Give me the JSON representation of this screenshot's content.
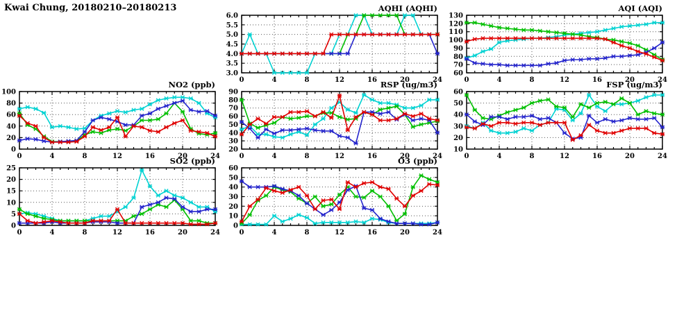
{
  "page_title": "Kwai Chung, 20180210–20180213",
  "axis_color": "#000000",
  "grid_color": "#555555",
  "series_colors": {
    "red": "#e00000",
    "green": "#00bf00",
    "blue": "#2424cc",
    "cyan": "#00d2d2"
  },
  "chart_data": [
    {
      "key": "aqhi",
      "type": "line",
      "title": "AQHI (AQHI)",
      "xlim": [
        0,
        24
      ],
      "xticks": [
        0,
        4,
        8,
        12,
        16,
        20,
        24
      ],
      "ylim": [
        3,
        6
      ],
      "yticks": [
        3,
        3.5,
        4,
        4.5,
        5,
        5.5,
        6
      ],
      "ytick_labels": [
        "3.0",
        "3.5",
        "4.0",
        "4.5",
        "5.0",
        "5.5",
        "6.0"
      ],
      "grid": true,
      "legend_position": "none",
      "marker": "star",
      "series": [
        {
          "name": "cyan",
          "color": "#00d2d2",
          "values": [
            4,
            5,
            4,
            4,
            3,
            3,
            3,
            3,
            3,
            4,
            4,
            4,
            5,
            5,
            6,
            6,
            5,
            5,
            5,
            5,
            6,
            6,
            5,
            5,
            5
          ]
        },
        {
          "name": "green",
          "color": "#00bf00",
          "values": [
            4,
            4,
            4,
            4,
            4,
            4,
            4,
            4,
            4,
            4,
            4,
            4,
            4,
            5,
            5,
            6,
            6,
            6,
            6,
            6,
            5,
            5,
            5,
            5,
            5
          ]
        },
        {
          "name": "blue",
          "color": "#2424cc",
          "values": [
            4,
            4,
            4,
            4,
            4,
            4,
            4,
            4,
            4,
            4,
            4,
            4,
            4,
            4,
            5,
            5,
            5,
            5,
            5,
            5,
            5,
            5,
            5,
            5,
            4
          ]
        },
        {
          "name": "red",
          "color": "#e00000",
          "values": [
            4,
            4,
            4,
            4,
            4,
            4,
            4,
            4,
            4,
            4,
            4,
            5,
            5,
            5,
            5,
            5,
            5,
            5,
            5,
            5,
            5,
            5,
            5,
            5,
            5
          ]
        }
      ]
    },
    {
      "key": "aqi",
      "type": "line",
      "title": "AQI (AQI)",
      "xlim": [
        0,
        24
      ],
      "xticks": [
        0,
        4,
        8,
        12,
        16,
        20,
        24
      ],
      "ylim": [
        60,
        130
      ],
      "yticks": [
        60,
        70,
        80,
        90,
        100,
        110,
        120,
        130
      ],
      "ytick_labels": [
        "60",
        "70",
        "80",
        "90",
        "100",
        "110",
        "120",
        "130"
      ],
      "grid": true,
      "legend_position": "none",
      "marker": "star",
      "series": [
        {
          "name": "cyan",
          "color": "#00d2d2",
          "values": [
            78,
            81,
            86,
            89,
            97,
            99,
            100,
            101,
            102,
            102,
            103,
            104,
            106,
            107,
            108,
            109,
            110,
            112,
            114,
            116,
            117,
            118,
            119,
            121,
            121
          ]
        },
        {
          "name": "green",
          "color": "#00bf00",
          "values": [
            121,
            121,
            119,
            117,
            115,
            114,
            113,
            112,
            112,
            111,
            110,
            109,
            108,
            107,
            106,
            104,
            103,
            101,
            100,
            98,
            96,
            93,
            88,
            82,
            76
          ]
        },
        {
          "name": "blue",
          "color": "#2424cc",
          "values": [
            77,
            72,
            71,
            70,
            70,
            69,
            69,
            69,
            69,
            69,
            71,
            72,
            75,
            76,
            76,
            77,
            77,
            78,
            80,
            80,
            81,
            82,
            85,
            90,
            97
          ]
        },
        {
          "name": "red",
          "color": "#e00000",
          "values": [
            98,
            101,
            102,
            102,
            102,
            102,
            102,
            102,
            102,
            102,
            102,
            102,
            102,
            102,
            102,
            102,
            102,
            101,
            97,
            93,
            90,
            86,
            83,
            79,
            75
          ]
        }
      ]
    },
    {
      "key": "no2",
      "type": "line",
      "title": "NO2 (ppb)",
      "xlim": [
        0,
        24
      ],
      "xticks": [
        0,
        4,
        8,
        12,
        16,
        20,
        24
      ],
      "ylim": [
        0,
        100
      ],
      "yticks": [
        0,
        20,
        40,
        60,
        80,
        100
      ],
      "ytick_labels": [
        "0",
        "20",
        "40",
        "60",
        "80",
        "100"
      ],
      "grid": true,
      "legend_position": "none",
      "marker": "star",
      "series": [
        {
          "name": "cyan",
          "color": "#00d2d2",
          "values": [
            70,
            73,
            70,
            63,
            38,
            40,
            38,
            35,
            36,
            50,
            58,
            62,
            66,
            64,
            68,
            70,
            78,
            85,
            88,
            90,
            90,
            88,
            80,
            62,
            55
          ]
        },
        {
          "name": "green",
          "color": "#00bf00",
          "values": [
            62,
            42,
            35,
            22,
            13,
            13,
            13,
            14,
            25,
            30,
            28,
            33,
            35,
            32,
            40,
            50,
            50,
            52,
            62,
            80,
            65,
            35,
            27,
            25,
            28
          ]
        },
        {
          "name": "blue",
          "color": "#2424cc",
          "values": [
            15,
            18,
            17,
            14,
            12,
            13,
            14,
            15,
            30,
            50,
            55,
            52,
            48,
            42,
            42,
            58,
            62,
            70,
            75,
            80,
            84,
            68,
            65,
            66,
            58
          ]
        },
        {
          "name": "red",
          "color": "#e00000",
          "values": [
            58,
            45,
            40,
            20,
            12,
            12,
            12,
            13,
            22,
            38,
            33,
            38,
            55,
            22,
            40,
            38,
            32,
            30,
            38,
            45,
            50,
            32,
            30,
            28,
            22
          ]
        }
      ]
    },
    {
      "key": "rsp",
      "type": "line",
      "title": "RSP (ug/m3)",
      "xlim": [
        0,
        24
      ],
      "xticks": [
        0,
        4,
        8,
        12,
        16,
        20,
        24
      ],
      "ylim": [
        20,
        90
      ],
      "yticks": [
        20,
        30,
        40,
        50,
        60,
        70,
        80,
        90
      ],
      "ytick_labels": [
        "20",
        "30",
        "40",
        "50",
        "60",
        "70",
        "80",
        "90"
      ],
      "grid": true,
      "legend_position": "none",
      "marker": "star",
      "series": [
        {
          "name": "cyan",
          "color": "#00d2d2",
          "values": [
            44,
            48,
            38,
            38,
            35,
            34,
            38,
            41,
            37,
            50,
            57,
            70,
            77,
            68,
            64,
            86,
            80,
            76,
            76,
            74,
            70,
            70,
            73,
            80,
            80
          ]
        },
        {
          "name": "green",
          "color": "#00bf00",
          "values": [
            80,
            51,
            46,
            49,
            52,
            59,
            57,
            58,
            60,
            60,
            64,
            64,
            59,
            56,
            57,
            65,
            62,
            68,
            70,
            72,
            62,
            47,
            50,
            52,
            54
          ]
        },
        {
          "name": "blue",
          "color": "#2424cc",
          "values": [
            53,
            45,
            34,
            44,
            39,
            43,
            43,
            44,
            45,
            43,
            42,
            42,
            36,
            34,
            27,
            65,
            65,
            63,
            65,
            56,
            62,
            55,
            57,
            55,
            40
          ]
        },
        {
          "name": "red",
          "color": "#e00000",
          "values": [
            38,
            50,
            57,
            51,
            59,
            59,
            65,
            65,
            66,
            60,
            65,
            58,
            85,
            43,
            59,
            65,
            62,
            55,
            55,
            57,
            63,
            60,
            63,
            57,
            55
          ]
        }
      ]
    },
    {
      "key": "fsp",
      "type": "line",
      "title": "FSP (ug/m3)",
      "xlim": [
        0,
        24
      ],
      "xticks": [
        0,
        4,
        8,
        12,
        16,
        20,
        24
      ],
      "ylim": [
        10,
        60
      ],
      "yticks": [
        10,
        20,
        30,
        40,
        50,
        60
      ],
      "ytick_labels": [
        "10",
        "20",
        "30",
        "40",
        "50",
        "60"
      ],
      "grid": true,
      "legend_position": "none",
      "marker": "star",
      "series": [
        {
          "name": "cyan",
          "color": "#00d2d2",
          "values": [
            30,
            28,
            33,
            26,
            24,
            24,
            25,
            28,
            26,
            31,
            33,
            45,
            44,
            35,
            41,
            57,
            47,
            43,
            49,
            49,
            50,
            52,
            55,
            57,
            57
          ]
        },
        {
          "name": "green",
          "color": "#00bf00",
          "values": [
            57,
            44,
            37,
            36,
            39,
            42,
            44,
            46,
            50,
            52,
            53,
            47,
            46,
            38,
            49,
            46,
            50,
            51,
            49,
            54,
            50,
            40,
            43,
            41,
            40
          ]
        },
        {
          "name": "blue",
          "color": "#2424cc",
          "values": [
            40,
            34,
            31,
            38,
            38,
            36,
            38,
            38,
            39,
            36,
            37,
            33,
            24,
            19,
            20,
            39,
            33,
            36,
            34,
            35,
            37,
            36,
            36,
            37,
            29
          ]
        },
        {
          "name": "red",
          "color": "#e00000",
          "values": [
            29,
            28,
            32,
            30,
            33,
            33,
            32,
            33,
            33,
            31,
            33,
            33,
            33,
            18,
            22,
            31,
            26,
            24,
            24,
            26,
            28,
            28,
            28,
            24,
            23
          ]
        }
      ]
    },
    {
      "key": "so2",
      "type": "line",
      "title": "SO2 (ppb)",
      "xlim": [
        0,
        24
      ],
      "xticks": [
        0,
        4,
        8,
        12,
        16,
        20,
        24
      ],
      "ylim": [
        0,
        25
      ],
      "yticks": [
        0,
        5,
        10,
        15,
        20,
        25
      ],
      "ytick_labels": [
        "0",
        "5",
        "10",
        "15",
        "20",
        "25"
      ],
      "grid": true,
      "legend_position": "none",
      "marker": "star",
      "series": [
        {
          "name": "cyan",
          "color": "#00d2d2",
          "values": [
            5,
            5.5,
            5,
            4,
            3,
            2,
            2,
            2,
            2,
            3,
            4,
            4,
            6,
            8,
            12,
            24,
            17,
            13,
            15,
            13,
            12,
            10,
            8,
            8,
            6
          ]
        },
        {
          "name": "green",
          "color": "#00bf00",
          "values": [
            7,
            5,
            4,
            3,
            2.5,
            2,
            2,
            2,
            2,
            2,
            2,
            2,
            2,
            2,
            4,
            5,
            7,
            9,
            8,
            11,
            7,
            2,
            2,
            1,
            1
          ]
        },
        {
          "name": "blue",
          "color": "#2424cc",
          "values": [
            1,
            1,
            1,
            1,
            1.5,
            1,
            1,
            1,
            1,
            1.5,
            1.5,
            1.5,
            1,
            1,
            1,
            8,
            9,
            10,
            12,
            11.5,
            8,
            6,
            6,
            7,
            7
          ]
        },
        {
          "name": "red",
          "color": "#e00000",
          "values": [
            5,
            2,
            1,
            1.5,
            2,
            1.5,
            1,
            1,
            1,
            2,
            2,
            2,
            7,
            1,
            1,
            1,
            1,
            1,
            1,
            1,
            1,
            0.5,
            0.5,
            0.5,
            1
          ]
        }
      ]
    },
    {
      "key": "o3",
      "type": "line",
      "title": "O3 (ppb)",
      "xlim": [
        0,
        24
      ],
      "xticks": [
        0,
        4,
        8,
        12,
        16,
        20,
        24
      ],
      "ylim": [
        0,
        60
      ],
      "yticks": [
        0,
        10,
        20,
        30,
        40,
        50,
        60
      ],
      "ytick_labels": [
        "0",
        "10",
        "20",
        "30",
        "40",
        "50",
        "60"
      ],
      "grid": true,
      "legend_position": "none",
      "marker": "star",
      "series": [
        {
          "name": "cyan",
          "color": "#00d2d2",
          "values": [
            1,
            1,
            1,
            1,
            10,
            4,
            7,
            11,
            8,
            2,
            3,
            3,
            3,
            3,
            4,
            3,
            7,
            6,
            3,
            2,
            2,
            2,
            2,
            2,
            3
          ]
        },
        {
          "name": "green",
          "color": "#00bf00",
          "values": [
            2,
            11,
            26,
            31,
            40,
            37,
            35,
            28,
            23,
            30,
            20,
            22,
            32,
            40,
            30,
            29,
            36,
            30,
            20,
            5,
            12,
            40,
            52,
            48,
            45
          ]
        },
        {
          "name": "blue",
          "color": "#2424cc",
          "values": [
            46,
            40,
            40,
            40,
            41,
            38,
            36,
            31,
            23,
            17,
            11,
            16,
            24,
            37,
            41,
            18,
            16,
            7,
            4,
            2,
            2,
            2,
            1,
            1,
            3
          ]
        },
        {
          "name": "red",
          "color": "#e00000",
          "values": [
            4,
            20,
            27,
            39,
            36,
            34,
            37,
            40,
            31,
            17,
            26,
            27,
            17,
            45,
            40,
            44,
            45,
            40,
            38,
            28,
            20,
            31,
            36,
            43,
            42
          ]
        }
      ]
    }
  ]
}
